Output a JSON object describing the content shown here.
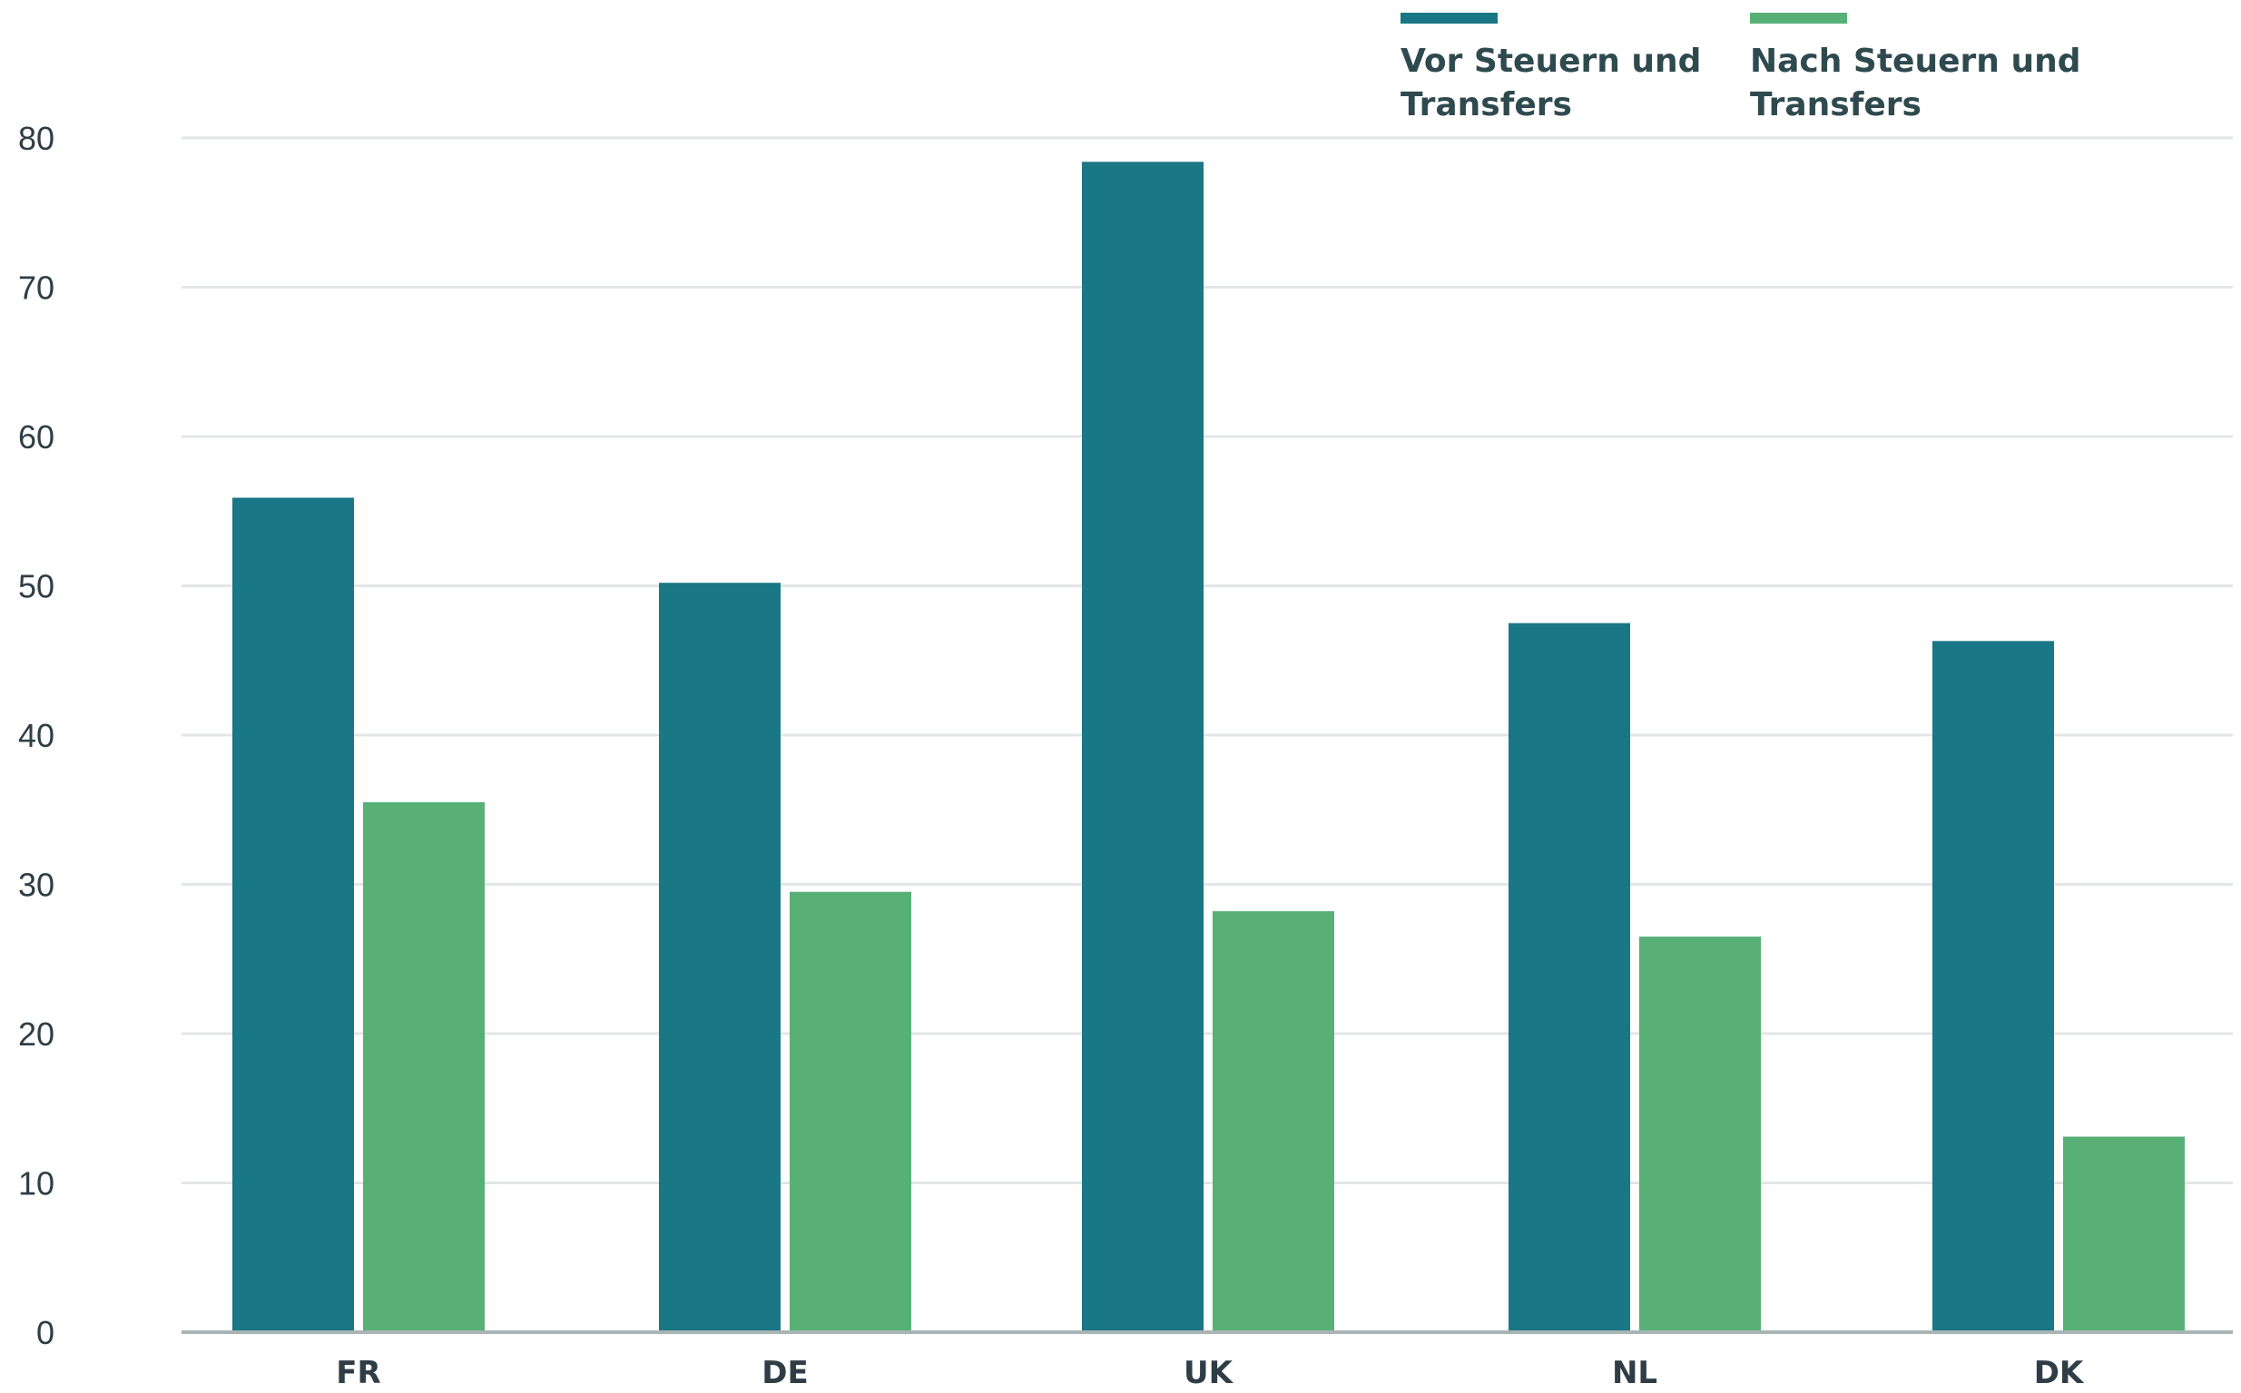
{
  "chart_data": {
    "type": "bar",
    "categories": [
      "FR",
      "DE",
      "UK",
      "NL",
      "DK"
    ],
    "series": [
      {
        "name": "Vor Steuern und Transfers",
        "color": "#1a7785",
        "values": [
          55.9,
          50.2,
          78.4,
          47.5,
          46.3
        ]
      },
      {
        "name": "Nach Steuern und Transfers",
        "color": "#58b077",
        "values": [
          35.5,
          29.5,
          28.2,
          26.5,
          13.1
        ]
      }
    ],
    "legend_lines": [
      [
        "Vor Steuern und",
        "Transfers"
      ],
      [
        "Nach Steuern und",
        "Transfers"
      ]
    ],
    "ylim": [
      0,
      80
    ],
    "yticks": [
      0,
      10,
      20,
      30,
      40,
      50,
      60,
      70,
      80
    ],
    "grid": true,
    "legend_position": "top-right",
    "colors": {
      "grid": "#e3e6e6",
      "axis": "#a9b4b4",
      "text": "#2f3e46"
    }
  }
}
